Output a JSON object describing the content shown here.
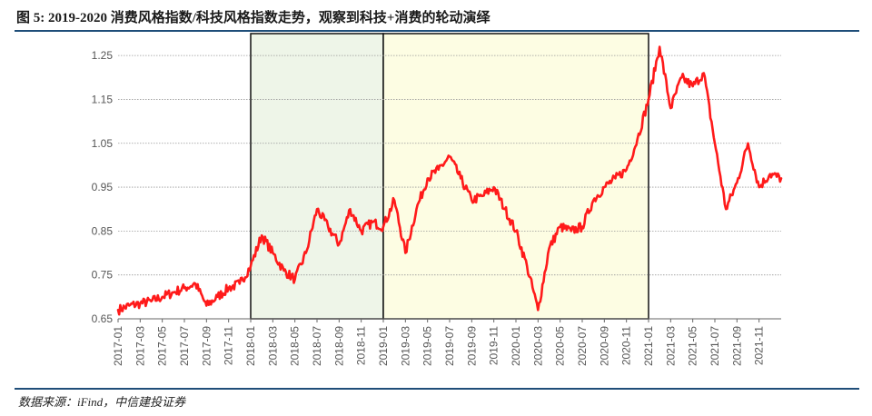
{
  "figure": {
    "title": "图 5: 2019-2020 消费风格指数/科技风格指数走势，观察到科技+消费的轮动演绎",
    "source": "数据来源：iFind，中信建投证券"
  },
  "colors": {
    "line": "#ff1a1a",
    "shade1": "#eef5e8",
    "shade2": "#fdfde3",
    "rule": "#1f4e79"
  },
  "chart_data": {
    "type": "line",
    "title": "",
    "xlabel": "",
    "ylabel": "",
    "ylim": [
      0.65,
      1.3
    ],
    "yticks": [
      0.65,
      0.75,
      0.85,
      0.95,
      1.05,
      1.15,
      1.25
    ],
    "ytick_labels": [
      "0.65",
      "0.75",
      "0.85",
      "0.95",
      "1.05",
      "1.15",
      "1.25"
    ],
    "xlim": [
      "2017-01",
      "2022-01"
    ],
    "xtick_labels": [
      "2017-01",
      "2017-03",
      "2017-05",
      "2017-07",
      "2017-09",
      "2017-11",
      "2018-01",
      "2018-03",
      "2018-05",
      "2018-07",
      "2018-09",
      "2018-11",
      "2019-01",
      "2019-03",
      "2019-05",
      "2019-07",
      "2019-09",
      "2019-11",
      "2020-01",
      "2020-03",
      "2020-05",
      "2020-07",
      "2020-09",
      "2020-11",
      "2021-01",
      "2021-03",
      "2021-05",
      "2021-07",
      "2021-09",
      "2021-11"
    ],
    "grid": "horizontal dotted",
    "highlight_periods": [
      {
        "start": "2018-01",
        "end": "2019-01",
        "fill": "#eef5e8"
      },
      {
        "start": "2019-01",
        "end": "2021-01",
        "fill": "#fdfde3"
      }
    ],
    "series": [
      {
        "values": [
          [
            "2017-01",
            0.67
          ],
          [
            "2017-02",
            0.68
          ],
          [
            "2017-03",
            0.685
          ],
          [
            "2017-04",
            0.69
          ],
          [
            "2017-05",
            0.7
          ],
          [
            "2017-06",
            0.71
          ],
          [
            "2017-07",
            0.72
          ],
          [
            "2017-08",
            0.73
          ],
          [
            "2017-09",
            0.68
          ],
          [
            "2017-10",
            0.7
          ],
          [
            "2017-11",
            0.72
          ],
          [
            "2017-12",
            0.73
          ],
          [
            "2018-01",
            0.77
          ],
          [
            "2018-02",
            0.84
          ],
          [
            "2018-03",
            0.8
          ],
          [
            "2018-04",
            0.76
          ],
          [
            "2018-05",
            0.74
          ],
          [
            "2018-06",
            0.8
          ],
          [
            "2018-07",
            0.9
          ],
          [
            "2018-08",
            0.86
          ],
          [
            "2018-09",
            0.82
          ],
          [
            "2018-10",
            0.9
          ],
          [
            "2018-11",
            0.85
          ],
          [
            "2018-12",
            0.87
          ],
          [
            "2019-01",
            0.86
          ],
          [
            "2019-02",
            0.92
          ],
          [
            "2019-03",
            0.8
          ],
          [
            "2019-04",
            0.9
          ],
          [
            "2019-05",
            0.97
          ],
          [
            "2019-06",
            0.99
          ],
          [
            "2019-07",
            1.02
          ],
          [
            "2019-08",
            0.97
          ],
          [
            "2019-09",
            0.92
          ],
          [
            "2019-10",
            0.93
          ],
          [
            "2019-11",
            0.95
          ],
          [
            "2019-12",
            0.9
          ],
          [
            "2020-01",
            0.85
          ],
          [
            "2020-02",
            0.77
          ],
          [
            "2020-03",
            0.67
          ],
          [
            "2020-04",
            0.81
          ],
          [
            "2020-05",
            0.86
          ],
          [
            "2020-06",
            0.85
          ],
          [
            "2020-07",
            0.86
          ],
          [
            "2020-08",
            0.92
          ],
          [
            "2020-09",
            0.95
          ],
          [
            "2020-10",
            0.97
          ],
          [
            "2020-11",
            0.99
          ],
          [
            "2020-12",
            1.06
          ],
          [
            "2021-01",
            1.15
          ],
          [
            "2021-02",
            1.27
          ],
          [
            "2021-03",
            1.13
          ],
          [
            "2021-04",
            1.2
          ],
          [
            "2021-05",
            1.18
          ],
          [
            "2021-06",
            1.21
          ],
          [
            "2021-07",
            1.05
          ],
          [
            "2021-08",
            0.9
          ],
          [
            "2021-09",
            0.96
          ],
          [
            "2021-10",
            1.05
          ],
          [
            "2021-11",
            0.95
          ],
          [
            "2021-12",
            0.98
          ],
          [
            "2022-01",
            0.97
          ]
        ]
      }
    ]
  }
}
